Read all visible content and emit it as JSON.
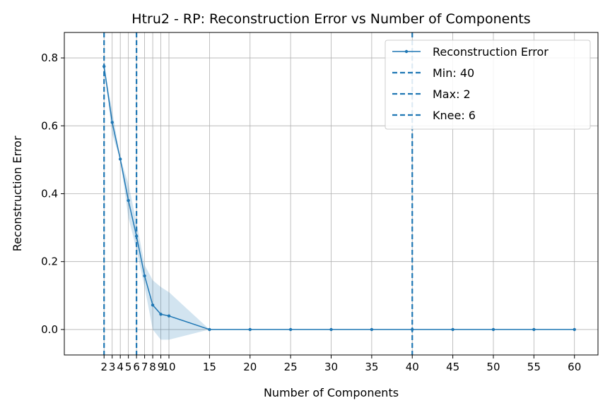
{
  "chart_data": {
    "type": "line",
    "title": "Htru2 - RP: Reconstruction Error vs Number of Components",
    "xlabel": "Number of Components",
    "ylabel": "Reconstruction Error",
    "xlim": [
      -2.9,
      62.9
    ],
    "ylim": [
      -0.075,
      0.875
    ],
    "grid": true,
    "legend_position": "top-right",
    "x_ticks": [
      2,
      3,
      4,
      5,
      6,
      7,
      8,
      9,
      10,
      15,
      20,
      25,
      30,
      35,
      40,
      45,
      50,
      55,
      60
    ],
    "x_tick_labels": [
      "2",
      "3",
      "4",
      "5",
      "6",
      "7",
      "8",
      "9",
      "10",
      "15",
      "20",
      "25",
      "30",
      "35",
      "40",
      "45",
      "50",
      "55",
      "60"
    ],
    "y_ticks": [
      0.0,
      0.2,
      0.4,
      0.6,
      0.8
    ],
    "y_tick_labels": [
      "0.0",
      "0.2",
      "0.4",
      "0.6",
      "0.8"
    ],
    "series": [
      {
        "name": "Reconstruction Error",
        "color": "#1f77b4",
        "x": [
          2,
          3,
          4,
          5,
          6,
          7,
          8,
          9,
          10,
          15,
          20,
          25,
          30,
          35,
          40,
          45,
          50,
          55,
          60
        ],
        "y": [
          0.775,
          0.61,
          0.502,
          0.38,
          0.275,
          0.158,
          0.072,
          0.045,
          0.04,
          0.0,
          0.0,
          0.0,
          0.0,
          0.0,
          0.0,
          0.0,
          0.0,
          0.0,
          0.0
        ],
        "band_lower": [
          0.775,
          0.575,
          0.5,
          0.33,
          0.235,
          0.125,
          0.0,
          -0.03,
          -0.03,
          0.0,
          0.0,
          0.0,
          0.0,
          0.0,
          0.0,
          0.0,
          0.0,
          0.0,
          0.0
        ],
        "band_upper": [
          0.775,
          0.645,
          0.505,
          0.43,
          0.315,
          0.19,
          0.145,
          0.125,
          0.11,
          0.0,
          0.0,
          0.0,
          0.0,
          0.0,
          0.0,
          0.0,
          0.0,
          0.0,
          0.0
        ]
      }
    ],
    "vlines": [
      {
        "name": "Min: 40",
        "x": 40,
        "color": "#1f77b4"
      },
      {
        "name": "Max: 2",
        "x": 2,
        "color": "#1f77b4"
      },
      {
        "name": "Knee: 6",
        "x": 6,
        "color": "#1f77b4"
      }
    ]
  }
}
